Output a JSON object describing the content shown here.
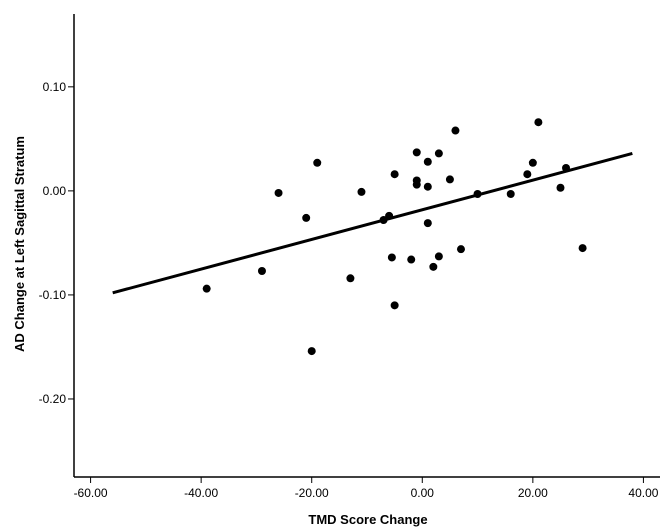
{
  "chart_data": {
    "type": "scatter",
    "title": "",
    "xlabel": "TMD Score Change",
    "ylabel": "AD Change at Left Sagittal Stratum",
    "xlim": [
      -63,
      43
    ],
    "ylim": [
      -0.275,
      0.17
    ],
    "x_ticks": [
      -60,
      -40,
      -20,
      0,
      20,
      40
    ],
    "x_tick_labels": [
      "-60.00",
      "-40.00",
      "-20.00",
      "0.00",
      "20.00",
      "40.00"
    ],
    "y_ticks": [
      -0.2,
      -0.1,
      0.0,
      0.1
    ],
    "y_tick_labels": [
      "-0.20",
      "-0.10",
      "0.00",
      "0.10"
    ],
    "grid": false,
    "series": [
      {
        "x": [
          -39,
          -29,
          -26,
          -21,
          -20,
          -19,
          -13,
          -11,
          -7,
          -6,
          -5.5,
          -5,
          -5,
          -2,
          -1,
          -1,
          -1,
          1,
          1,
          1,
          2,
          3,
          3,
          5,
          6,
          7,
          10,
          16,
          19,
          20,
          21,
          25,
          26,
          29
        ],
        "y": [
          -0.094,
          -0.077,
          -0.002,
          -0.026,
          -0.154,
          0.027,
          -0.084,
          -0.001,
          -0.028,
          -0.024,
          -0.064,
          0.016,
          -0.11,
          -0.066,
          0.037,
          0.01,
          0.006,
          0.028,
          0.004,
          -0.031,
          -0.073,
          0.036,
          -0.063,
          0.011,
          0.058,
          -0.056,
          -0.003,
          -0.003,
          0.016,
          0.027,
          0.066,
          0.003,
          0.022,
          -0.055
        ]
      }
    ],
    "fit_line": {
      "x": [
        -56,
        38
      ],
      "y": [
        -0.098,
        0.036
      ]
    }
  }
}
